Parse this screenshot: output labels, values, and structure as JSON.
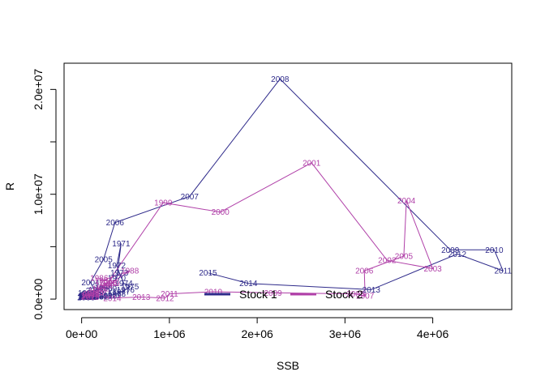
{
  "chart_data": {
    "type": "line",
    "title": "",
    "xlabel": "SSB",
    "ylabel": "R",
    "xlim": [
      -200000,
      4900000
    ],
    "ylim": [
      -1000000,
      22500000
    ],
    "x_ticks": [
      0,
      1000000,
      2000000,
      3000000,
      4000000
    ],
    "x_tick_labels": [
      "0e+00",
      "1e+06",
      "2e+06",
      "3e+06",
      "4e+06"
    ],
    "y_ticks": [
      0,
      10000000,
      20000000
    ],
    "y_tick_labels": [
      "0.0e+00",
      "1.0e+07",
      "2.0e+07"
    ],
    "legend": {
      "position": "bottom-center",
      "entries": [
        "Stock 1",
        "Stock 2"
      ]
    },
    "series": [
      {
        "name": "Stock 1",
        "color": "#2e2a8a",
        "points": [
          {
            "year": "1965",
            "x": 60000,
            "y": 600000
          },
          {
            "year": "1966",
            "x": 120000,
            "y": 400000
          },
          {
            "year": "1967",
            "x": 180000,
            "y": 900000
          },
          {
            "year": "1968",
            "x": 250000,
            "y": 1100000
          },
          {
            "year": "1969",
            "x": 300000,
            "y": 1000000
          },
          {
            "year": "1970",
            "x": 400000,
            "y": 2000000
          },
          {
            "year": "1971",
            "x": 450000,
            "y": 5300000
          },
          {
            "year": "1972",
            "x": 400000,
            "y": 3200000
          },
          {
            "year": "1973",
            "x": 430000,
            "y": 2500000
          },
          {
            "year": "1974",
            "x": 480000,
            "y": 1500000
          },
          {
            "year": "1975",
            "x": 550000,
            "y": 1200000
          },
          {
            "year": "1976",
            "x": 500000,
            "y": 900000
          },
          {
            "year": "1977",
            "x": 450000,
            "y": 700000
          },
          {
            "year": "1978",
            "x": 400000,
            "y": 500000
          },
          {
            "year": "1979",
            "x": 350000,
            "y": 400000
          },
          {
            "year": "1980",
            "x": 300000,
            "y": 300000
          },
          {
            "year": "1981",
            "x": 250000,
            "y": 300000
          },
          {
            "year": "1982",
            "x": 200000,
            "y": 250000
          },
          {
            "year": "1983",
            "x": 150000,
            "y": 300000
          },
          {
            "year": "1984",
            "x": 100000,
            "y": 250000
          },
          {
            "year": "1985",
            "x": 80000,
            "y": 300000
          },
          {
            "year": "1986",
            "x": 60000,
            "y": 250000
          },
          {
            "year": "1987",
            "x": 50000,
            "y": 200000
          },
          {
            "year": "1988",
            "x": 60000,
            "y": 300000
          },
          {
            "year": "1989",
            "x": 80000,
            "y": 200000
          },
          {
            "year": "1990",
            "x": 100000,
            "y": 300000
          },
          {
            "year": "1991",
            "x": 70000,
            "y": 250000
          },
          {
            "year": "1992",
            "x": 60000,
            "y": 200000
          },
          {
            "year": "1993",
            "x": 50000,
            "y": 150000
          },
          {
            "year": "1994",
            "x": 60000,
            "y": 200000
          },
          {
            "year": "1995",
            "x": 70000,
            "y": 250000
          },
          {
            "year": "1996",
            "x": 80000,
            "y": 300000
          },
          {
            "year": "1997",
            "x": 90000,
            "y": 200000
          },
          {
            "year": "1998",
            "x": 100000,
            "y": 250000
          },
          {
            "year": "1999",
            "x": 80000,
            "y": 300000
          },
          {
            "year": "2000",
            "x": 70000,
            "y": 350000
          },
          {
            "year": "2001",
            "x": 80000,
            "y": 400000
          },
          {
            "year": "2002",
            "x": 100000,
            "y": 500000
          },
          {
            "year": "2003",
            "x": 150000,
            "y": 800000
          },
          {
            "year": "2004",
            "x": 100000,
            "y": 1600000
          },
          {
            "year": "2005",
            "x": 250000,
            "y": 3800000
          },
          {
            "year": "2006",
            "x": 380000,
            "y": 7300000
          },
          {
            "year": "2007",
            "x": 1230000,
            "y": 9800000
          },
          {
            "year": "2008",
            "x": 2260000,
            "y": 21000000
          },
          {
            "year": "2009",
            "x": 4200000,
            "y": 4700000
          },
          {
            "year": "2010",
            "x": 4700000,
            "y": 4700000
          },
          {
            "year": "2011",
            "x": 4800000,
            "y": 2700000
          },
          {
            "year": "2012",
            "x": 4280000,
            "y": 4300000
          },
          {
            "year": "2013",
            "x": 3300000,
            "y": 900000
          },
          {
            "year": "2014",
            "x": 1900000,
            "y": 1500000
          },
          {
            "year": "2015",
            "x": 1440000,
            "y": 2500000
          }
        ]
      },
      {
        "name": "Stock 2",
        "color": "#b040a8",
        "points": [
          {
            "year": "1986",
            "x": 200000,
            "y": 2000000
          },
          {
            "year": "1987",
            "x": 250000,
            "y": 1800000
          },
          {
            "year": "1988",
            "x": 550000,
            "y": 2700000
          },
          {
            "year": "1989",
            "x": 330000,
            "y": 1500000
          },
          {
            "year": "1990",
            "x": 300000,
            "y": 1500000
          },
          {
            "year": "1991",
            "x": 260000,
            "y": 1300000
          },
          {
            "year": "1992",
            "x": 220000,
            "y": 1000000
          },
          {
            "year": "1993",
            "x": 180000,
            "y": 800000
          },
          {
            "year": "1994",
            "x": 150000,
            "y": 600000
          },
          {
            "year": "1995",
            "x": 120000,
            "y": 500000
          },
          {
            "year": "1996",
            "x": 100000,
            "y": 400000
          },
          {
            "year": "1997",
            "x": 90000,
            "y": 300000
          },
          {
            "year": "1998",
            "x": 300000,
            "y": 1600000
          },
          {
            "year": "1999",
            "x": 930000,
            "y": 9200000
          },
          {
            "year": "2000",
            "x": 1580000,
            "y": 8300000
          },
          {
            "year": "2001",
            "x": 2620000,
            "y": 13000000
          },
          {
            "year": "2002",
            "x": 3480000,
            "y": 3700000
          },
          {
            "year": "2003",
            "x": 4000000,
            "y": 2900000
          },
          {
            "year": "2004",
            "x": 3700000,
            "y": 9400000
          },
          {
            "year": "2005",
            "x": 3670000,
            "y": 4100000
          },
          {
            "year": "2006",
            "x": 3220000,
            "y": 2700000
          },
          {
            "year": "2007",
            "x": 3230000,
            "y": 300000
          },
          {
            "year": "2008",
            "x": 3120000,
            "y": 500000
          },
          {
            "year": "2009",
            "x": 2180000,
            "y": 600000
          },
          {
            "year": "2010",
            "x": 1500000,
            "y": 700000
          },
          {
            "year": "2011",
            "x": 1000000,
            "y": 500000
          },
          {
            "year": "2012",
            "x": 950000,
            "y": 100000
          },
          {
            "year": "2013",
            "x": 680000,
            "y": 200000
          },
          {
            "year": "2014",
            "x": 350000,
            "y": 100000
          },
          {
            "year": "2015",
            "x": 100000,
            "y": 200000
          }
        ]
      }
    ]
  }
}
